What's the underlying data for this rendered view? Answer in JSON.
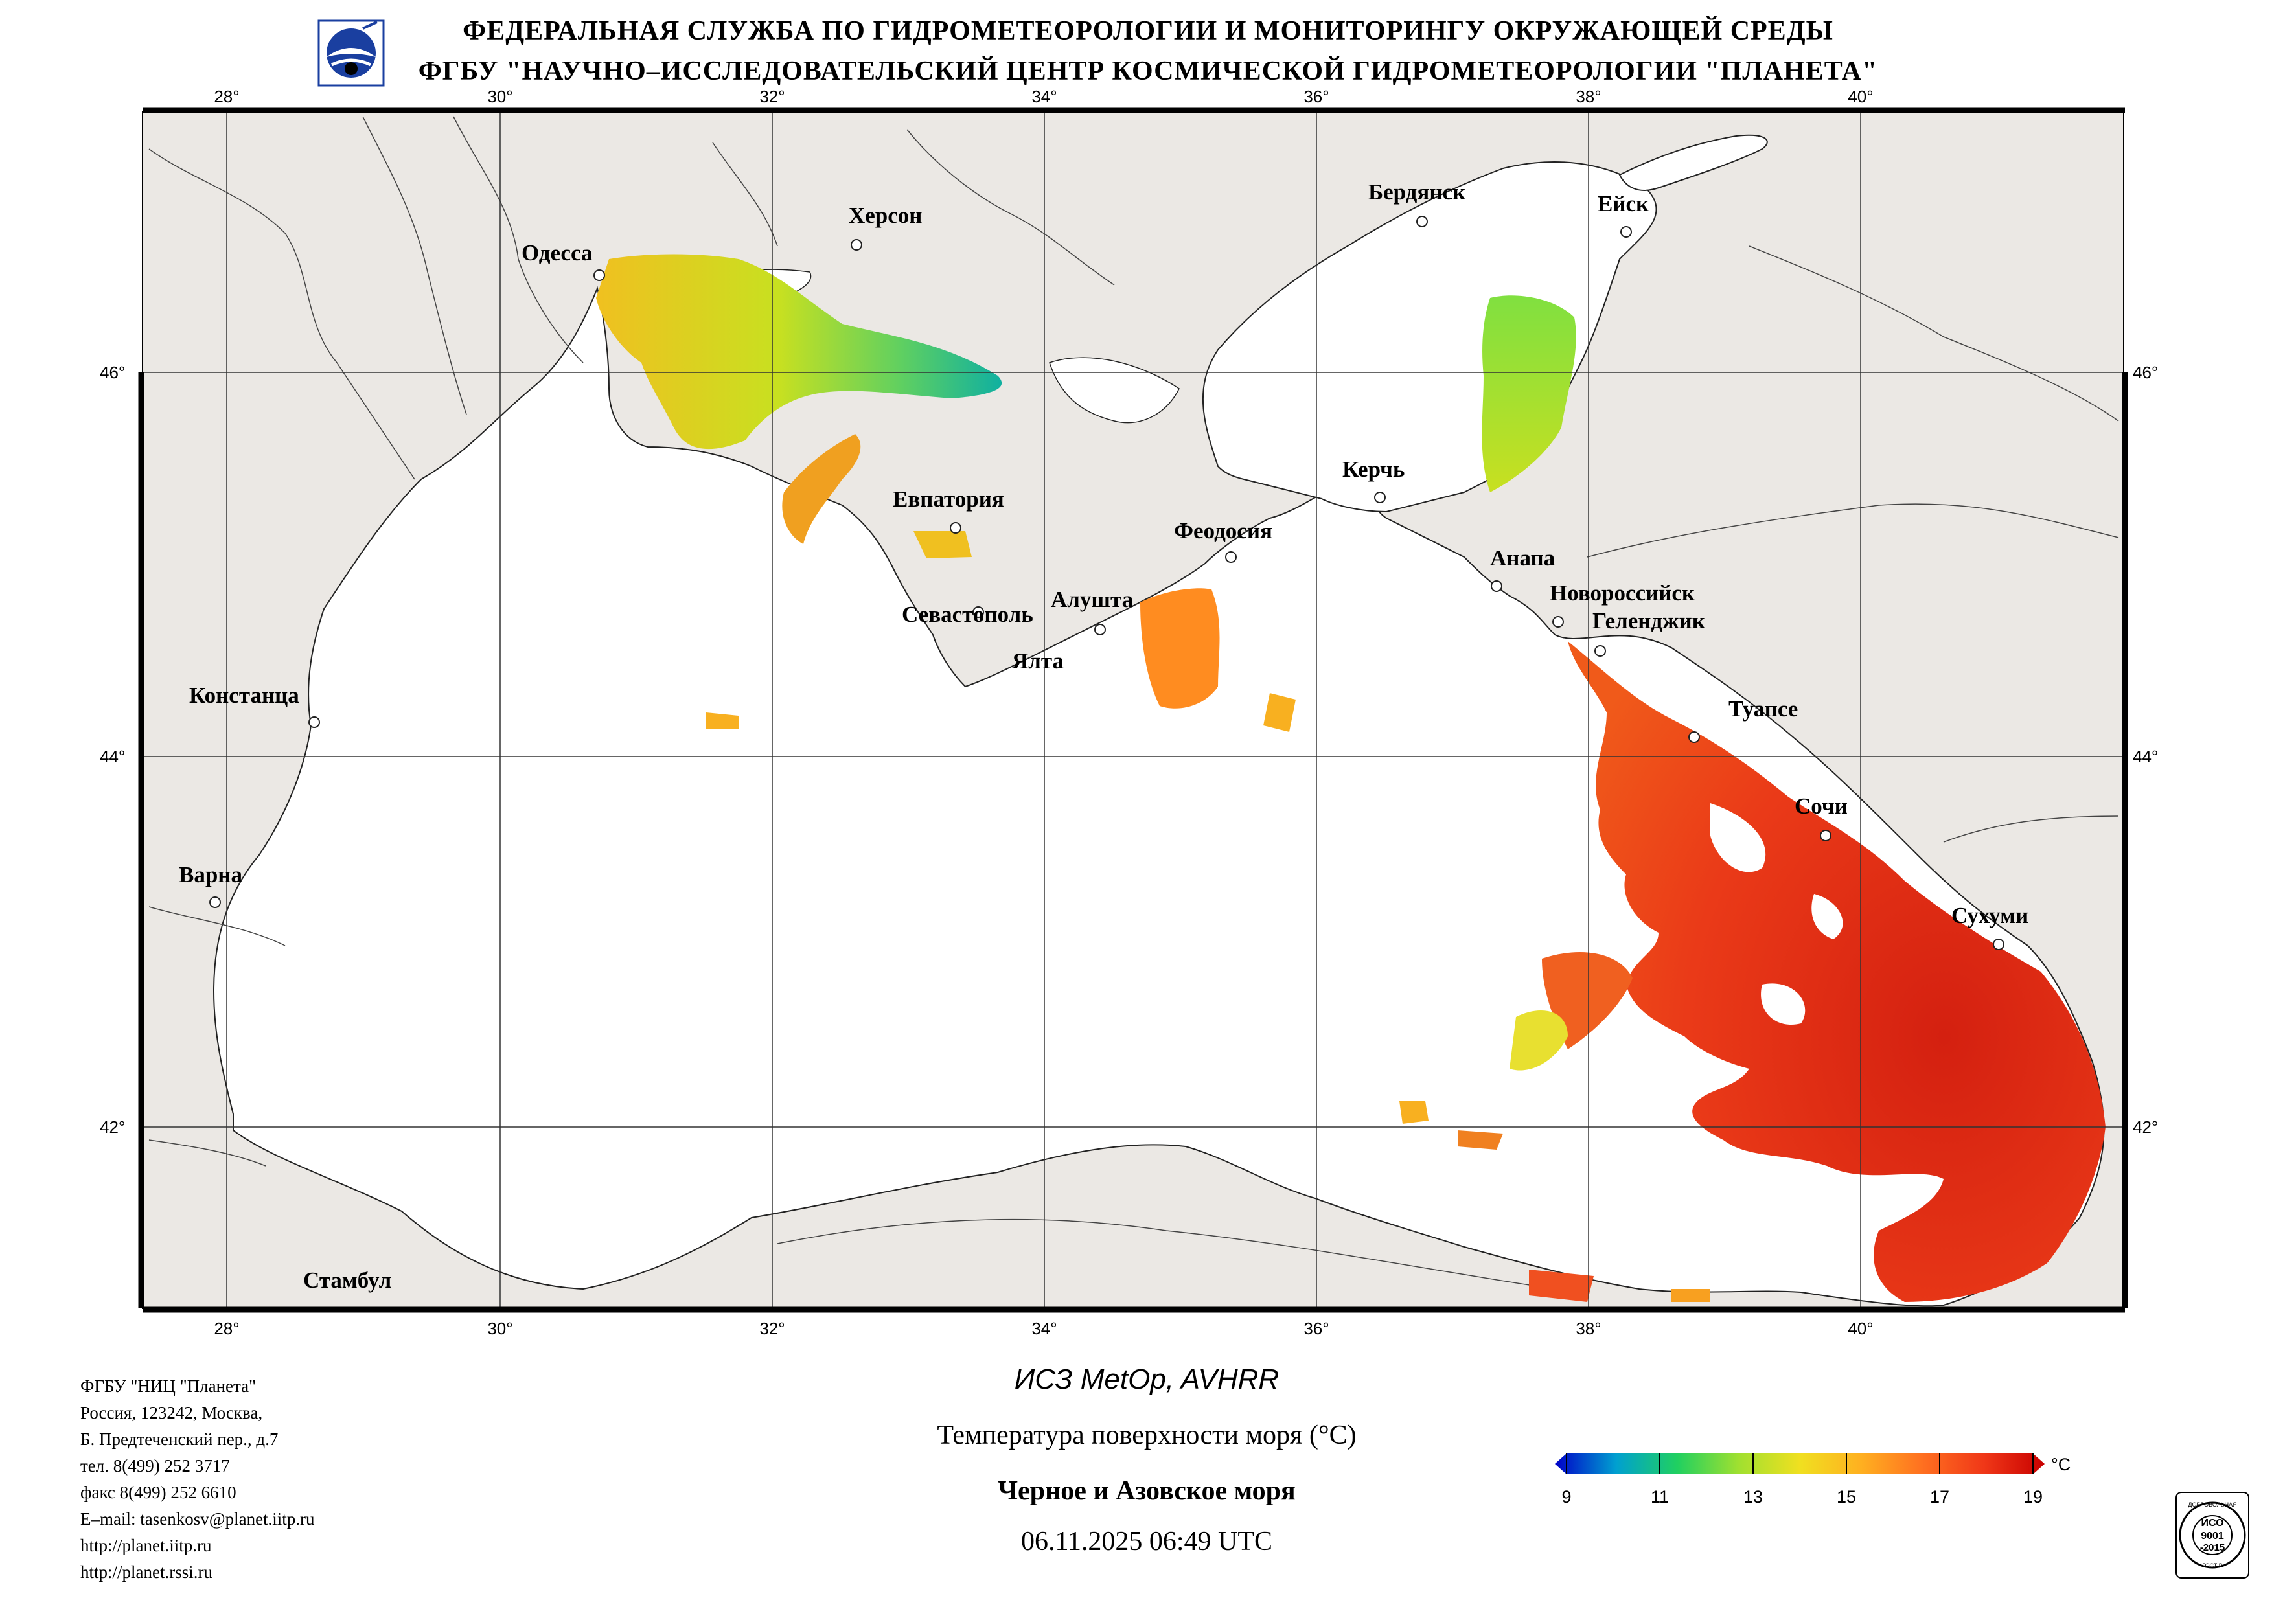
{
  "header": {
    "line1": "ФЕДЕРАЛЬНАЯ СЛУЖБА ПО ГИДРОМЕТЕОРОЛОГИИ И МОНИТОРИНГУ ОКРУЖАЮЩЕЙ СРЕДЫ",
    "line2": "ФГБУ \"НАУЧНО–ИССЛЕДОВАТЕЛЬСКИЙ ЦЕНТР КОСМИЧЕСКОЙ ГИДРОМЕТЕОРОЛОГИИ \"ПЛАНЕТА\""
  },
  "map": {
    "lon_ticks": [
      "28°",
      "30°",
      "32°",
      "34°",
      "36°",
      "38°",
      "40°"
    ],
    "lat_ticks": [
      "46°",
      "44°",
      "42°"
    ],
    "cities": [
      "Одесса",
      "Херсон",
      "Бердянск",
      "Ейск",
      "Евпатория",
      "Керчь",
      "Феодосия",
      "Анапа",
      "Новороссийск",
      "Геленджик",
      "Севастополь",
      "Алушта",
      "Ялта",
      "Туапсе",
      "Констанца",
      "Сочи",
      "Варна",
      "Сухуми",
      "Стамбул"
    ],
    "colors": {
      "land": "#ebe8e4",
      "sea": "#ffffff",
      "coast": "#222222",
      "grid": "#333333"
    }
  },
  "org_info": [
    "ФГБУ \"НИЦ \"Планета\"",
    "Россия, 123242, Москва,",
    "Б. Предтеченский пер., д.7",
    "тел. 8(499) 252 3717",
    "факс 8(499) 252 6610",
    "E–mail: tasenkosv@planet.iitp.ru",
    "http://planet.iitp.ru",
    "http://planet.rssi.ru"
  ],
  "caption": {
    "satellite": "ИСЗ MetOp, AVHRR",
    "parameter": "Температура поверхности моря (°С)",
    "region": "Черное и Азовское моря",
    "datetime": "06.11.2025 06:49 UTC"
  },
  "colorbar": {
    "unit": "°С",
    "ticks": [
      "9",
      "11",
      "13",
      "15",
      "17",
      "19"
    ],
    "range": [
      9,
      19
    ],
    "colors": [
      "#0000c8",
      "#00a0d0",
      "#20d060",
      "#a0e030",
      "#f0e020",
      "#ffb020",
      "#ff7020",
      "#f03818",
      "#c80000"
    ]
  },
  "iso_badge": {
    "top_text": "ДОБРОВОЛЬНАЯ",
    "middle": "ИСО",
    "code": "9001",
    "year": "-2015",
    "bottom_text": "ГОСТ Р"
  }
}
